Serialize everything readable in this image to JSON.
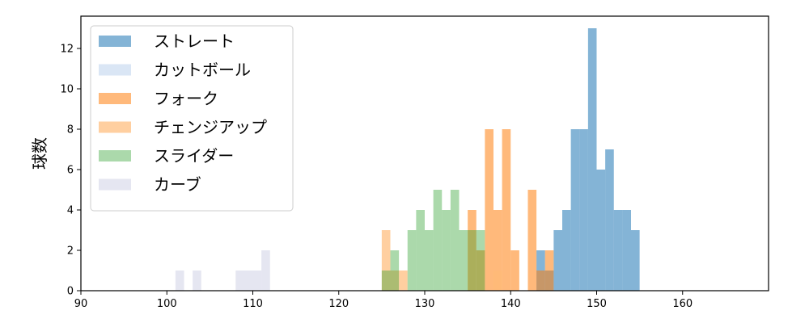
{
  "chart_data": {
    "type": "bar",
    "ylabel": "球数",
    "xlim": [
      90,
      170
    ],
    "ylim": [
      0,
      13.6
    ],
    "x_ticks": [
      90,
      100,
      110,
      120,
      130,
      140,
      150,
      160
    ],
    "y_ticks": [
      0,
      2,
      4,
      6,
      8,
      10,
      12
    ],
    "bin_width": 1,
    "grid": false,
    "legend_placement": "upper-left",
    "series": [
      {
        "name": "ストレート",
        "color": "#1f77b4",
        "alpha": 0.55,
        "bins": [
          {
            "x": 143,
            "count": 2
          },
          {
            "x": 144,
            "count": 1
          },
          {
            "x": 145,
            "count": 3
          },
          {
            "x": 146,
            "count": 4
          },
          {
            "x": 147,
            "count": 8
          },
          {
            "x": 148,
            "count": 8
          },
          {
            "x": 149,
            "count": 13
          },
          {
            "x": 150,
            "count": 6
          },
          {
            "x": 151,
            "count": 7
          },
          {
            "x": 152,
            "count": 4
          },
          {
            "x": 153,
            "count": 4
          },
          {
            "x": 154,
            "count": 3
          }
        ]
      },
      {
        "name": "カットボール",
        "color": "#aec7e8",
        "alpha": 0.45,
        "bins": []
      },
      {
        "name": "フォーク",
        "color": "#ff7f0e",
        "alpha": 0.55,
        "bins": [
          {
            "x": 135,
            "count": 4
          },
          {
            "x": 136,
            "count": 2
          },
          {
            "x": 137,
            "count": 8
          },
          {
            "x": 138,
            "count": 4
          },
          {
            "x": 139,
            "count": 8
          },
          {
            "x": 140,
            "count": 2
          },
          {
            "x": 142,
            "count": 5
          },
          {
            "x": 143,
            "count": 1
          },
          {
            "x": 144,
            "count": 2
          }
        ]
      },
      {
        "name": "チェンジアップ",
        "color": "#ffbb78",
        "alpha": 0.7,
        "bins": [
          {
            "x": 125,
            "count": 3
          },
          {
            "x": 126,
            "count": 1
          },
          {
            "x": 127,
            "count": 1
          },
          {
            "x": 138,
            "count": 1
          }
        ]
      },
      {
        "name": "スライダー",
        "color": "#2ca02c",
        "alpha": 0.4,
        "bins": [
          {
            "x": 125,
            "count": 1
          },
          {
            "x": 126,
            "count": 2
          },
          {
            "x": 128,
            "count": 3
          },
          {
            "x": 129,
            "count": 4
          },
          {
            "x": 130,
            "count": 3
          },
          {
            "x": 131,
            "count": 5
          },
          {
            "x": 132,
            "count": 4
          },
          {
            "x": 133,
            "count": 5
          },
          {
            "x": 134,
            "count": 3
          },
          {
            "x": 135,
            "count": 3
          },
          {
            "x": 136,
            "count": 3
          }
        ]
      },
      {
        "name": "カーブ",
        "color": "#c5c8e0",
        "alpha": 0.45,
        "bins": [
          {
            "x": 101,
            "count": 1
          },
          {
            "x": 103,
            "count": 1
          },
          {
            "x": 108,
            "count": 1
          },
          {
            "x": 109,
            "count": 1
          },
          {
            "x": 110,
            "count": 1
          },
          {
            "x": 111,
            "count": 2
          }
        ]
      }
    ]
  }
}
